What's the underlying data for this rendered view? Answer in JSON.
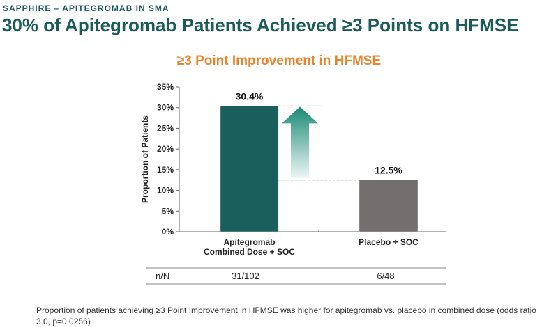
{
  "header": {
    "eyebrow": "SAPPHIRE – APITEGROMAB IN SMA",
    "title": "30% of Apitegromab Patients Achieved ≥3 Points on HFMSE"
  },
  "chart_data": {
    "type": "bar",
    "title": "≥3 Point Improvement in HFMSE",
    "xlabel": "",
    "ylabel": "Proportion of Patients",
    "ylim": [
      0,
      35
    ],
    "yticks": [
      "0%",
      "5%",
      "10%",
      "15%",
      "20%",
      "25%",
      "30%",
      "35%"
    ],
    "categories": [
      "Apitegromab Combined Dose + SOC",
      "Placebo + SOC"
    ],
    "category_lines": [
      [
        "Apitegromab",
        "Combined Dose + SOC"
      ],
      [
        "Placebo + SOC"
      ]
    ],
    "values": [
      30.4,
      12.5
    ],
    "data_labels": [
      "30.4%",
      "12.5%"
    ],
    "colors": [
      "#1b5f5d",
      "#736f6e"
    ],
    "arrow_color": "#1a8a74",
    "grid": false,
    "table": {
      "row_label": "n/N",
      "values": [
        "31/102",
        "6/48"
      ]
    }
  },
  "footnote": "Proportion of patients achieving ≥3 Point Improvement in HFMSE was higher for apitegromab vs. placebo in combined dose (odds ratio 3.0, p=0.0256)"
}
